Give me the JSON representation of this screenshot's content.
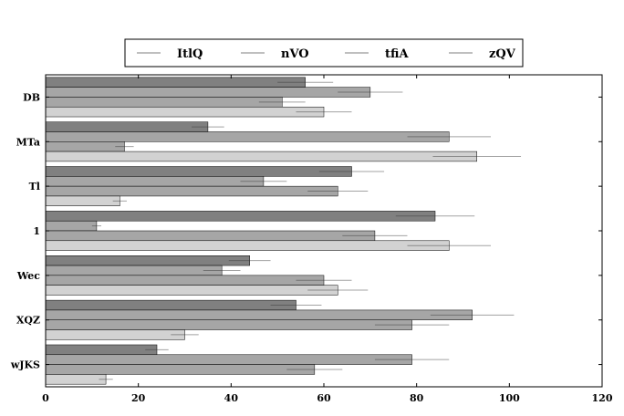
{
  "chart_data": {
    "type": "bar",
    "orientation": "horizontal",
    "categories": [
      "DB",
      "MTa",
      "Tl",
      "1",
      "Wec",
      "XQZ",
      "wJKS"
    ],
    "series": [
      {
        "name": "ItlQ",
        "values": [
          56,
          35,
          66,
          84,
          44,
          54,
          24
        ],
        "errors": [
          6,
          3.5,
          7,
          8.5,
          4.5,
          5.5,
          2.5
        ],
        "color": "#808080"
      },
      {
        "name": "nVO",
        "values": [
          70,
          87,
          47,
          11,
          38,
          92,
          79
        ],
        "errors": [
          7,
          9,
          5,
          1,
          4,
          9,
          8
        ],
        "color": "#a6a6a6"
      },
      {
        "name": "tfiA",
        "values": [
          51,
          17,
          63,
          71,
          60,
          79,
          58
        ],
        "errors": [
          5,
          2,
          6.5,
          7,
          6,
          8,
          6
        ],
        "color": "#a6a6a6"
      },
      {
        "name": "zQV",
        "values": [
          60,
          93,
          16,
          87,
          63,
          30,
          13
        ],
        "errors": [
          6,
          9.5,
          1.5,
          9,
          6.5,
          3,
          1.5
        ],
        "color": "#d2d2d2"
      }
    ],
    "xlim": [
      0,
      120
    ],
    "xticks": [
      "0",
      "20",
      "40",
      "60",
      "80",
      "100",
      "120"
    ],
    "legend_placement": "top-center",
    "grid": false
  }
}
